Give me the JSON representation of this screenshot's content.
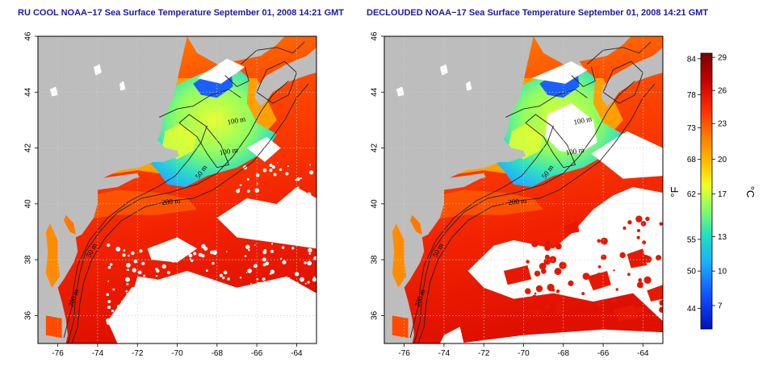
{
  "panels": [
    {
      "title": "RU COOL NOAA−17 Sea Surface Temperature September 01, 2008 14:21 GMT",
      "contour_labels": [
        "100 m",
        "100 m",
        "50 m",
        "200 m",
        "50 m",
        "200 m"
      ]
    },
    {
      "title": "DECLOUDED NOAA−17 Sea Surface Temperature September 01, 2008 14:21 GMT",
      "contour_labels": [
        "100 m",
        "100 m",
        "50 m",
        "200 m",
        "50 m",
        "200 m"
      ]
    }
  ],
  "axes": {
    "x_ticks": [
      "-76",
      "-74",
      "-72",
      "-70",
      "-68",
      "-66",
      "-64"
    ],
    "y_ticks": [
      "46",
      "44",
      "42",
      "40",
      "38",
      "36"
    ],
    "lon_range": [
      -77,
      -63
    ],
    "lat_range": [
      35,
      46
    ]
  },
  "colorbar": {
    "f_label": "°F",
    "c_label": "°C",
    "f_ticks": [
      "84",
      "78",
      "73",
      "68",
      "62",
      "55",
      "50",
      "44"
    ],
    "c_ticks": [
      "29",
      "26",
      "23",
      "20",
      "17",
      "13",
      "10",
      "7"
    ],
    "colors": [
      "#7a0000",
      "#c80000",
      "#ff2a00",
      "#ff7a00",
      "#ffc000",
      "#f0ff20",
      "#8cff60",
      "#20e0c0",
      "#18b0ff",
      "#1050ff",
      "#0010c0"
    ]
  },
  "colors": {
    "land": "#bdbdbd",
    "cloud": "#ffffff",
    "title": "#1a1aa8"
  }
}
